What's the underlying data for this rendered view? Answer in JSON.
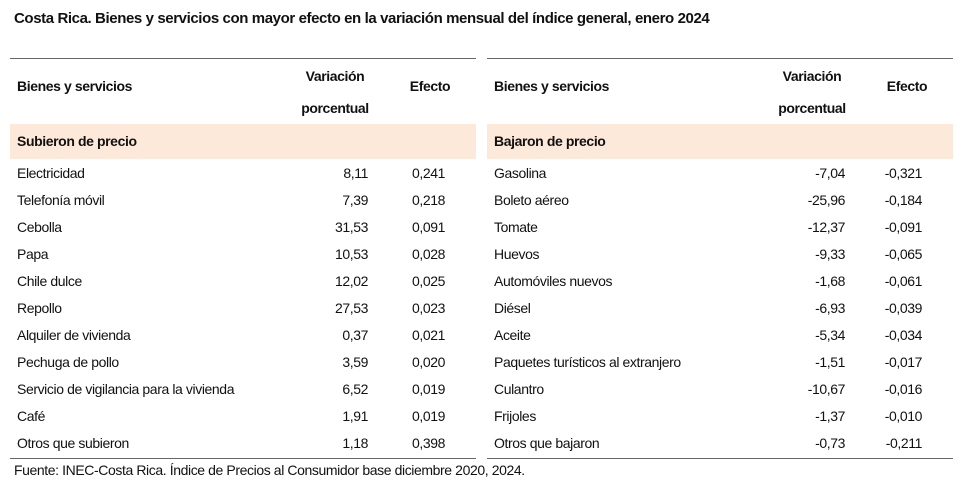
{
  "title": "Costa Rica. Bienes y servicios con mayor efecto en la variación mensual del índice general, enero 2024",
  "tables": [
    {
      "headers": [
        "Bienes y servicios",
        "Variación porcentual",
        "Efecto"
      ],
      "section": "Subieron de precio",
      "rows": [
        [
          "Electricidad",
          "8,11",
          "0,241"
        ],
        [
          "Telefonía móvil",
          "7,39",
          "0,218"
        ],
        [
          "Cebolla",
          "31,53",
          "0,091"
        ],
        [
          "Papa",
          "10,53",
          "0,028"
        ],
        [
          "Chile dulce",
          "12,02",
          "0,025"
        ],
        [
          "Repollo",
          "27,53",
          "0,023"
        ],
        [
          "Alquiler de vivienda",
          "0,37",
          "0,021"
        ],
        [
          "Pechuga de pollo",
          "3,59",
          "0,020"
        ],
        [
          "Servicio de vigilancia para la vivienda",
          "6,52",
          "0,019"
        ],
        [
          "Café",
          "1,91",
          "0,019"
        ],
        [
          "Otros que subieron",
          "1,18",
          "0,398"
        ]
      ]
    },
    {
      "headers": [
        "Bienes y servicios",
        "Variación porcentual",
        "Efecto"
      ],
      "section": "Bajaron de precio",
      "rows": [
        [
          "Gasolina",
          "-7,04",
          "-0,321"
        ],
        [
          "Boleto aéreo",
          "-25,96",
          "-0,184"
        ],
        [
          "Tomate",
          "-12,37",
          "-0,091"
        ],
        [
          "Huevos",
          "-9,33",
          "-0,065"
        ],
        [
          "Automóviles nuevos",
          "-1,68",
          "-0,061"
        ],
        [
          "Diésel",
          "-6,93",
          "-0,039"
        ],
        [
          "Aceite",
          "-5,34",
          "-0,034"
        ],
        [
          "Paquetes turísticos al extranjero",
          "-1,51",
          "-0,017"
        ],
        [
          "Culantro",
          "-10,67",
          "-0,016"
        ],
        [
          "Frijoles",
          "-1,37",
          "-0,010"
        ],
        [
          "Otros que bajaron",
          "-0,73",
          "-0,211"
        ]
      ]
    }
  ],
  "footnote": "Fuente: INEC-Costa Rica. Índice de Precios al Consumidor base diciembre 2020, 2024."
}
